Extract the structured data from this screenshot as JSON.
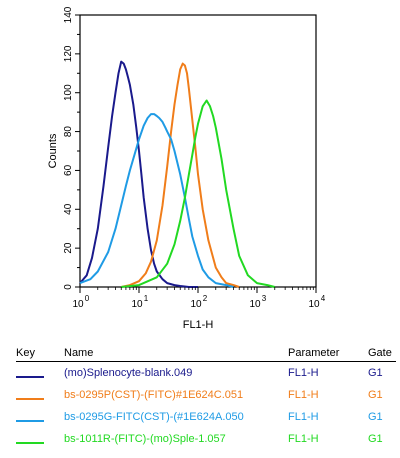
{
  "chart_data": {
    "type": "line",
    "title": "",
    "xlabel": "FL1-H",
    "ylabel": "Counts",
    "xscale": "log",
    "xlim": [
      1,
      10000
    ],
    "ylim": [
      0,
      140
    ],
    "yticks": [
      "0",
      "20",
      "40",
      "60",
      "80",
      "100",
      "120",
      "140"
    ],
    "xtick_bases": [
      "10",
      "10",
      "10",
      "10",
      "10"
    ],
    "xtick_exps": [
      "0",
      "1",
      "2",
      "3",
      "4"
    ],
    "grid": false,
    "series": [
      {
        "name": "(mo)Splenocyte-blank.049",
        "color": "#1a1a8c",
        "x": [
          1,
          1.3,
          1.6,
          2,
          2.5,
          3,
          3.5,
          4,
          4.5,
          5,
          5.5,
          6,
          6.5,
          7,
          8,
          9,
          10,
          11,
          12,
          14,
          16,
          18,
          20,
          25,
          30,
          40,
          50,
          70,
          100
        ],
        "y": [
          2,
          6,
          15,
          30,
          52,
          72,
          88,
          100,
          110,
          116,
          115,
          112,
          108,
          104,
          94,
          82,
          70,
          58,
          46,
          30,
          19,
          12,
          8,
          4,
          2,
          1,
          0.5,
          0,
          0
        ]
      },
      {
        "name": "bs-0295P(CST)-(FITC)#1E624C.051",
        "color": "#f07d1a",
        "x": [
          5,
          7,
          10,
          13,
          16,
          20,
          25,
          30,
          35,
          40,
          45,
          50,
          55,
          60,
          65,
          70,
          80,
          90,
          100,
          120,
          150,
          200,
          250,
          300,
          400,
          500
        ],
        "y": [
          0,
          1,
          3,
          7,
          13,
          24,
          42,
          62,
          80,
          94,
          104,
          112,
          115,
          114,
          110,
          102,
          86,
          72,
          58,
          40,
          24,
          10,
          5,
          2,
          1,
          0
        ]
      },
      {
        "name": "bs-0295G-FITC(CST)-(#1E624A.050",
        "color": "#1f9be5",
        "x": [
          1,
          1.5,
          2,
          3,
          4,
          5,
          6,
          7,
          8,
          10,
          12,
          14,
          16,
          18,
          20,
          22,
          25,
          28,
          30,
          35,
          40,
          50,
          60,
          70,
          80,
          100,
          120,
          150,
          200,
          300,
          400
        ],
        "y": [
          2,
          4,
          8,
          18,
          30,
          42,
          52,
          60,
          66,
          76,
          83,
          87,
          89,
          89,
          88,
          87,
          85,
          82,
          80,
          76,
          70,
          58,
          46,
          35,
          26,
          16,
          9,
          5,
          2,
          1,
          0
        ]
      },
      {
        "name": "bs-1011R-(FITC)-(mo)Sple-1.057",
        "color": "#22d922",
        "x": [
          5,
          10,
          20,
          30,
          40,
          50,
          60,
          70,
          80,
          90,
          100,
          120,
          140,
          160,
          180,
          200,
          250,
          300,
          400,
          500,
          700,
          1000,
          1500,
          2000
        ],
        "y": [
          0,
          1,
          5,
          12,
          22,
          34,
          46,
          58,
          68,
          77,
          84,
          93,
          96,
          93,
          88,
          82,
          66,
          50,
          30,
          16,
          6,
          2,
          1,
          0
        ]
      }
    ]
  },
  "legend": {
    "headers": {
      "key": "Key",
      "name": "Name",
      "parameter": "Parameter",
      "gate": "Gate"
    },
    "rows": [
      {
        "color": "#1a1a8c",
        "name": "(mo)Splenocyte-blank.049",
        "parameter": "FL1-H",
        "gate": "G1"
      },
      {
        "color": "#f07d1a",
        "name": "bs-0295P(CST)-(FITC)#1E624C.051",
        "parameter": "FL1-H",
        "gate": "G1"
      },
      {
        "color": "#1f9be5",
        "name": "bs-0295G-FITC(CST)-(#1E624A.050",
        "parameter": "FL1-H",
        "gate": "G1"
      },
      {
        "color": "#22d922",
        "name": "bs-1011R-(FITC)-(mo)Sple-1.057",
        "parameter": "FL1-H",
        "gate": "G1"
      }
    ]
  }
}
